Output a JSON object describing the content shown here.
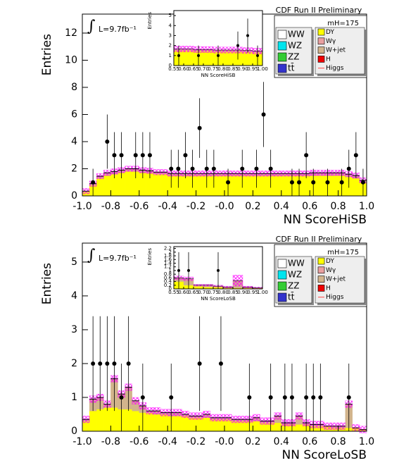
{
  "chart_data": [
    {
      "type": "histogram",
      "title": "CDF Run II Preliminary",
      "annotation": "L=9.7fb⁻¹",
      "mass_label": "mH=175",
      "x_label": "NN ScoreHiSB",
      "y_label": "Entries",
      "bins": [
        -1,
        -0.95,
        -0.9,
        -0.85,
        -0.8,
        -0.75,
        -0.7,
        -0.65,
        -0.6,
        -0.55,
        -0.5,
        -0.45,
        -0.4,
        -0.35,
        -0.3,
        -0.25,
        -0.2,
        -0.15,
        -0.1,
        -0.05,
        0,
        0.05,
        0.1,
        0.15,
        0.2,
        0.25,
        0.3,
        0.35,
        0.4,
        0.45,
        0.5,
        0.55,
        0.6,
        0.65,
        0.7,
        0.75,
        0.8,
        0.85,
        0.9,
        0.95,
        1
      ],
      "xlim": [
        -1,
        1
      ],
      "xticks": [
        {
          "value": -1,
          "label": "-1.0"
        },
        {
          "value": -0.8,
          "label": "-0.8"
        },
        {
          "value": -0.6,
          "label": "-0.6"
        },
        {
          "value": -0.4,
          "label": "-0.4"
        },
        {
          "value": -0.2,
          "label": "-0.2"
        },
        {
          "value": 0,
          "label": "-0.0"
        },
        0.2,
        0.4,
        0.6,
        0.8,
        {
          "value": 1,
          "label": "1.0"
        }
      ],
      "ylim": [
        0,
        13.4
      ],
      "yticks": [
        0,
        2,
        4,
        6,
        8,
        10,
        12
      ],
      "legend": [
        {
          "name": "WW",
          "color": "#ffffff"
        },
        {
          "name": "WZ",
          "color": "#00e5ee"
        },
        {
          "name": "ZZ",
          "color": "#33cc33"
        },
        {
          "name": "tt̄",
          "color": "#3333cc"
        },
        {
          "name": "DY",
          "color": "#ffff00"
        },
        {
          "name": "Wγ",
          "color": "#e8a0a0"
        },
        {
          "name": "W+jet",
          "color": "#d2b48c"
        },
        {
          "name": "H",
          "color": "#ee0000"
        },
        {
          "name": "Higgs",
          "color": "#ff4444"
        }
      ],
      "band_color": "#ff00ff",
      "stack": [
        {
          "legend": 4,
          "values": [
            0.3,
            0.8,
            1.3,
            1.5,
            1.6,
            1.7,
            1.8,
            1.8,
            1.7,
            1.7,
            1.6,
            1.6,
            1.5,
            1.5,
            1.5,
            1.5,
            1.5,
            1.5,
            1.5,
            1.5,
            1.5,
            1.5,
            1.5,
            1.5,
            1.5,
            1.5,
            1.5,
            1.5,
            1.5,
            1.5,
            1.5,
            1.5,
            1.5,
            1.5,
            1.5,
            1.5,
            1.5,
            1.4,
            1.3,
            1.0
          ]
        },
        {
          "legend": 6,
          "values": [
            0.05,
            0.1,
            0.15,
            0.2,
            0.2,
            0.2,
            0.2,
            0.2,
            0.2,
            0.15,
            0.15,
            0.15,
            0.15,
            0.15,
            0.15,
            0.15,
            0.15,
            0.15,
            0.15,
            0.15,
            0.15,
            0.15,
            0.15,
            0.15,
            0.15,
            0.15,
            0.15,
            0.15,
            0.15,
            0.15,
            0.15,
            0.15,
            0.2,
            0.2,
            0.2,
            0.2,
            0.2,
            0.2,
            0.2,
            0.15
          ]
        }
      ],
      "uncertainty": [
        0.2,
        0.2,
        0.2,
        0.2,
        0.2,
        0.2,
        0.2,
        0.2,
        0.2,
        0.2,
        0.2,
        0.2,
        0.2,
        0.2,
        0.2,
        0.2,
        0.2,
        0.2,
        0.2,
        0.2,
        0.2,
        0.2,
        0.2,
        0.2,
        0.2,
        0.2,
        0.2,
        0.2,
        0.2,
        0.2,
        0.2,
        0.2,
        0.2,
        0.2,
        0.2,
        0.2,
        0.2,
        0.2,
        0.2,
        0.2
      ],
      "data": {
        "values": [
          null,
          1,
          null,
          4,
          3,
          3,
          null,
          3,
          3,
          3,
          null,
          null,
          2,
          2,
          3,
          2,
          5,
          2,
          2,
          null,
          1,
          null,
          2,
          null,
          2,
          6,
          2,
          null,
          null,
          1,
          1,
          3,
          1,
          null,
          1,
          null,
          1,
          2,
          3,
          1
        ],
        "errors": [
          null,
          1,
          null,
          2,
          1.7,
          1.7,
          null,
          1.7,
          1.7,
          1.7,
          null,
          null,
          1.4,
          1.4,
          1.7,
          1.4,
          2.2,
          1.4,
          1.4,
          null,
          1,
          null,
          1.4,
          null,
          1.4,
          2.4,
          1.4,
          null,
          null,
          1,
          1,
          1.7,
          1,
          null,
          1,
          null,
          1,
          1.4,
          1.7,
          1
        ]
      },
      "inset": {
        "x_label": "NN ScoreHiSB",
        "y_label": "Entries",
        "bins": [
          0.55,
          0.6,
          0.65,
          0.7,
          0.75,
          0.8,
          0.85,
          0.9,
          0.95,
          1
        ],
        "xlim": [
          0.55,
          1
        ],
        "xticks": [
          0.55,
          {
            "value": 0.6,
            "label": "0.60"
          },
          0.65,
          {
            "value": 0.7,
            "label": "0.70"
          },
          0.75,
          {
            "value": 0.8,
            "label": "0.80"
          },
          0.85,
          {
            "value": 0.9,
            "label": "0.90"
          },
          0.95,
          {
            "value": 1,
            "label": "1.00"
          }
        ],
        "ylim": [
          0,
          5.5
        ],
        "yticks": [
          0,
          1,
          2,
          3,
          4,
          5
        ],
        "stack": [
          {
            "legend": 4,
            "values": [
              1.5,
              1.5,
              1.45,
              1.45,
              1.4,
              1.4,
              1.4,
              1.35,
              1.3
            ]
          },
          {
            "legend": 6,
            "values": [
              0.15,
              0.15,
              0.15,
              0.15,
              0.15,
              0.15,
              0.15,
              0.15,
              0.15
            ]
          }
        ],
        "uncertainty": [
          0.3,
          0.3,
          0.3,
          0.3,
          0.3,
          0.3,
          0.3,
          0.3,
          0.3
        ],
        "data": {
          "values": [
            1,
            null,
            1,
            null,
            1,
            null,
            2,
            3,
            1
          ],
          "errors": [
            1,
            null,
            1,
            null,
            1,
            null,
            1.4,
            1.7,
            1
          ]
        }
      }
    },
    {
      "type": "histogram",
      "title": "CDF Run II Preliminary",
      "annotation": "L=9.7fb⁻¹",
      "mass_label": "mH=175",
      "x_label": "NN ScoreLoSB",
      "y_label": "Entries",
      "bins": [
        -1,
        -0.95,
        -0.9,
        -0.85,
        -0.8,
        -0.75,
        -0.7,
        -0.65,
        -0.6,
        -0.55,
        -0.5,
        -0.45,
        -0.4,
        -0.35,
        -0.3,
        -0.25,
        -0.2,
        -0.15,
        -0.1,
        -0.05,
        0,
        0.05,
        0.1,
        0.15,
        0.2,
        0.25,
        0.3,
        0.35,
        0.4,
        0.45,
        0.5,
        0.55,
        0.6,
        0.65,
        0.7,
        0.75,
        0.8,
        0.85,
        0.9,
        0.95,
        1
      ],
      "xlim": [
        -1,
        1
      ],
      "xticks": [
        {
          "value": -1,
          "label": "-1.0"
        },
        {
          "value": -0.8,
          "label": "-0.8"
        },
        {
          "value": -0.6,
          "label": "-0.6"
        },
        {
          "value": -0.4,
          "label": "-0.4"
        },
        {
          "value": -0.2,
          "label": "-0.2"
        },
        {
          "value": 0,
          "label": "-0.0"
        },
        0.2,
        0.4,
        0.6,
        0.8,
        {
          "value": 1,
          "label": "1.0"
        }
      ],
      "ylim": [
        0,
        5.56
      ],
      "yticks": [
        0,
        1,
        2,
        3,
        4,
        5
      ],
      "legend": [
        {
          "name": "WW",
          "color": "#ffffff"
        },
        {
          "name": "WZ",
          "color": "#00e5ee"
        },
        {
          "name": "ZZ",
          "color": "#33cc33"
        },
        {
          "name": "tt̄",
          "color": "#3333cc"
        },
        {
          "name": "DY",
          "color": "#ffff00"
        },
        {
          "name": "Wγ",
          "color": "#e8a0a0"
        },
        {
          "name": "W+jet",
          "color": "#d2b48c"
        },
        {
          "name": "H",
          "color": "#ee0000"
        },
        {
          "name": "Higgs",
          "color": "#ff4444"
        }
      ],
      "band_color": "#ff00ff",
      "stack": [
        {
          "legend": 4,
          "values": [
            0.3,
            0.6,
            0.65,
            0.7,
            0.7,
            0.65,
            0.65,
            0.6,
            0.55,
            0.55,
            0.5,
            0.5,
            0.45,
            0.45,
            0.45,
            0.4,
            0.4,
            0.4,
            0.35,
            0.35,
            0.35,
            0.3,
            0.3,
            0.3,
            0.3,
            0.25,
            0.25,
            0.25,
            0.2,
            0.2,
            0.2,
            0.2,
            0.15,
            0.15,
            0.15,
            0.1,
            0.1,
            0.1,
            0.1,
            0.05
          ]
        },
        {
          "legend": 6,
          "values": [
            0.05,
            0.35,
            0.35,
            0.1,
            0.85,
            0.45,
            0.65,
            0.3,
            0.2,
            0.05,
            0.1,
            0.05,
            0.1,
            0.1,
            0.05,
            0.05,
            0.05,
            0.1,
            0.05,
            0.05,
            0.05,
            0.05,
            0.05,
            0.05,
            0.1,
            0.05,
            0.05,
            0.2,
            0.05,
            0.05,
            0.25,
            0.05,
            0.05,
            0.05,
            0,
            0.05,
            0.05,
            0.7,
            0,
            0
          ]
        }
      ],
      "uncertainty": [
        0.1,
        0.1,
        0.1,
        0.1,
        0.1,
        0.1,
        0.1,
        0.1,
        0.1,
        0.1,
        0.1,
        0.1,
        0.1,
        0.1,
        0.1,
        0.1,
        0.1,
        0.1,
        0.1,
        0.1,
        0.1,
        0.1,
        0.1,
        0.1,
        0.1,
        0.1,
        0.1,
        0.1,
        0.1,
        0.1,
        0.1,
        0.1,
        0.1,
        0.1,
        0.1,
        0.1,
        0.1,
        0.1,
        0.1,
        0.1
      ],
      "data": {
        "values": [
          null,
          2,
          2,
          2,
          2,
          1,
          2,
          null,
          1,
          null,
          null,
          null,
          1,
          null,
          null,
          null,
          2,
          null,
          null,
          2,
          null,
          null,
          null,
          1,
          null,
          null,
          1,
          null,
          1,
          1,
          null,
          1,
          1,
          1,
          null,
          null,
          null,
          1,
          null,
          null
        ],
        "errors": [
          null,
          1.4,
          1.4,
          1.4,
          1.4,
          1,
          1.4,
          null,
          1,
          null,
          null,
          null,
          1,
          null,
          null,
          null,
          1.4,
          null,
          null,
          1.4,
          null,
          null,
          null,
          1,
          null,
          null,
          1,
          null,
          1,
          1,
          null,
          1,
          1,
          1,
          null,
          null,
          null,
          1,
          null,
          null
        ]
      },
      "inset": {
        "x_label": "NN ScoreLoSB",
        "y_label": "Entries",
        "bins": [
          0.55,
          0.6,
          0.65,
          0.7,
          0.75,
          0.8,
          0.85,
          0.9,
          0.95,
          1
        ],
        "xlim": [
          0.55,
          1
        ],
        "xticks": [
          0.55,
          {
            "value": 0.6,
            "label": "0.60"
          },
          0.65,
          {
            "value": 0.7,
            "label": "0.70"
          },
          0.75,
          {
            "value": 0.8,
            "label": "0.80"
          },
          0.85,
          {
            "value": 0.9,
            "label": "0.90"
          },
          0.95,
          {
            "value": 1,
            "label": "1.00"
          }
        ],
        "ylim": [
          0,
          2.3
        ],
        "yticks": [
          0,
          0.2,
          0.4,
          0.6,
          0.8,
          1,
          1.2,
          1.4,
          1.6,
          1.8,
          2,
          2.2
        ],
        "stack": [
          {
            "legend": 4,
            "values": [
              0.4,
              0.2,
              0.15,
              0.1,
              0.1,
              0.05,
              0.05,
              0.05,
              0.05
            ]
          },
          {
            "legend": 6,
            "values": [
              0.2,
              0.35,
              0.05,
              0.1,
              0.05,
              0.05,
              0.4,
              0.05,
              0
            ]
          }
        ],
        "uncertainty": [
          0.1,
          0.1,
          0.05,
          0.05,
          0.05,
          0.05,
          0.3,
          0.05,
          0.05
        ],
        "data": {
          "values": [
            1,
            1,
            null,
            null,
            1,
            null,
            null,
            null,
            null
          ],
          "errors": [
            1,
            1,
            null,
            null,
            1,
            null,
            null,
            null,
            null
          ]
        }
      }
    }
  ]
}
